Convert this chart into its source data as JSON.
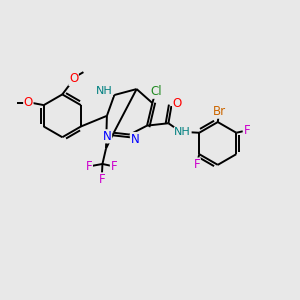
{
  "bg_color": "#e8e8e8",
  "bond_color": "#000000",
  "bond_width": 1.4,
  "figsize": [
    3.0,
    3.0
  ],
  "dpi": 100,
  "xlim": [
    0,
    10
  ],
  "ylim": [
    0,
    10
  ]
}
